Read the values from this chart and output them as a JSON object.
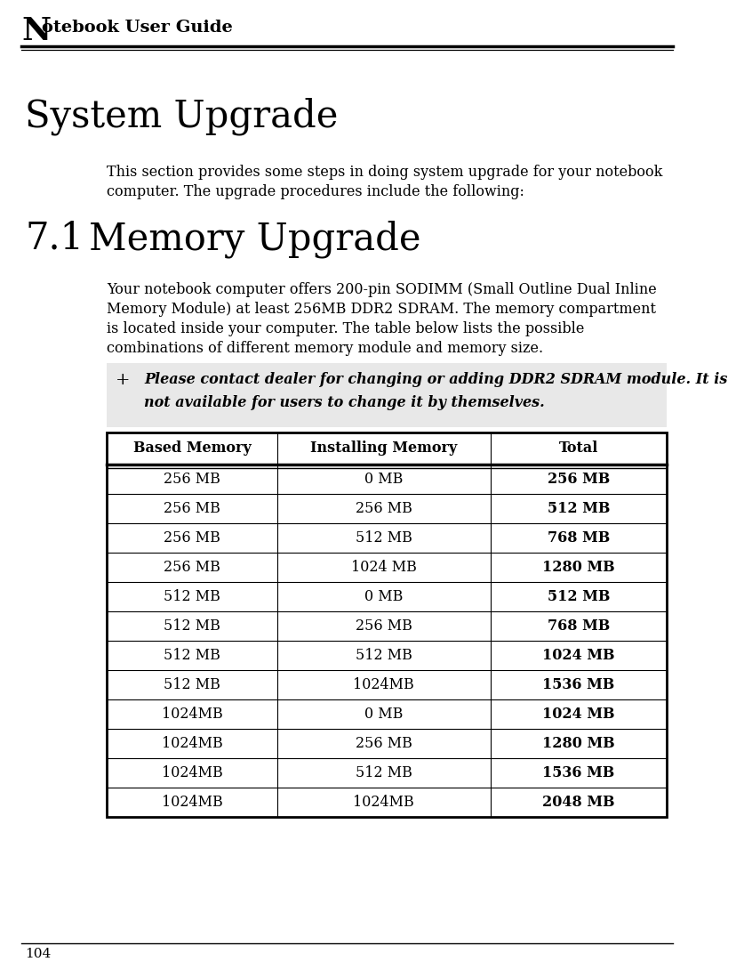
{
  "header_title_N": "N",
  "header_title_rest": "otebook User Guide",
  "page_number": "104",
  "section_title": "System Upgrade",
  "section_body_line1": "This section provides some steps in doing system upgrade for your notebook",
  "section_body_line2": "computer. The upgrade procedures include the following:",
  "subsection_number": "7.1",
  "subsection_title": "Memory Upgrade",
  "subsection_body_line1": "Your notebook computer offers 200-pin SODIMM (Small Outline Dual Inline",
  "subsection_body_line2": "Memory Module) at least 256MB DDR2 SDRAM. The memory compartment",
  "subsection_body_line3": "is located inside your computer. The table below lists the possible",
  "subsection_body_line4": "combinations of different memory module and memory size.",
  "note_symbol": "+",
  "note_line1": "Please contact dealer for changing or adding DDR2 SDRAM module. It is",
  "note_line2": "not available for users to change it by themselves.",
  "note_bg": "#e8e8e8",
  "table_headers": [
    "Based Memory",
    "Installing Memory",
    "Total"
  ],
  "table_data": [
    [
      "256 MB",
      "0 MB",
      "256 MB"
    ],
    [
      "256 MB",
      "256 MB",
      "512 MB"
    ],
    [
      "256 MB",
      "512 MB",
      "768 MB"
    ],
    [
      "256 MB",
      "1024 MB",
      "1280 MB"
    ],
    [
      "512 MB",
      "0 MB",
      "512 MB"
    ],
    [
      "512 MB",
      "256 MB",
      "768 MB"
    ],
    [
      "512 MB",
      "512 MB",
      "1024 MB"
    ],
    [
      "512 MB",
      "1024MB",
      "1536 MB"
    ],
    [
      "1024MB",
      "0 MB",
      "1024 MB"
    ],
    [
      "1024MB",
      "256 MB",
      "1280 MB"
    ],
    [
      "1024MB",
      "512 MB",
      "1536 MB"
    ],
    [
      "1024MB",
      "1024MB",
      "2048 MB"
    ]
  ],
  "bg_color": "#ffffff",
  "text_color": "#000000"
}
